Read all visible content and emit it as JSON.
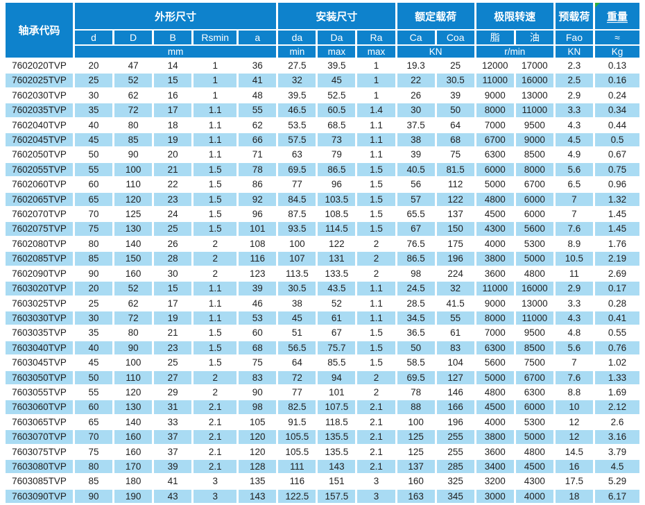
{
  "table": {
    "corner_header": "轴承代码",
    "groups": [
      {
        "label": "外形尺寸",
        "colspan": 5
      },
      {
        "label": "安装尺寸",
        "colspan": 3
      },
      {
        "label": "额定载荷",
        "colspan": 2
      },
      {
        "label": "极限转速",
        "colspan": 2
      },
      {
        "label": "预载荷",
        "colspan": 1
      },
      {
        "label": "重量",
        "colspan": 1,
        "has_comment_marker": true
      }
    ],
    "sub_headers": [
      "d",
      "D",
      "B",
      "Rsmin",
      "a",
      "da",
      "Da",
      "Ra",
      "Ca",
      "Coa",
      "脂",
      "油",
      "Fao",
      "≈"
    ],
    "unit_row": [
      {
        "label": "mm",
        "colspan": 5
      },
      {
        "label": "min",
        "colspan": 1
      },
      {
        "label": "max",
        "colspan": 1
      },
      {
        "label": "max",
        "colspan": 1
      },
      {
        "label": "KN",
        "colspan": 2
      },
      {
        "label": "r/min",
        "colspan": 2
      },
      {
        "label": "KN",
        "colspan": 1
      },
      {
        "label": "Kg",
        "colspan": 1
      }
    ],
    "rows": [
      [
        "7602020TVP",
        "20",
        "47",
        "14",
        "1",
        "36",
        "27.5",
        "39.5",
        "1",
        "19.3",
        "25",
        "12000",
        "17000",
        "2.3",
        "0.13"
      ],
      [
        "7602025TVP",
        "25",
        "52",
        "15",
        "1",
        "41",
        "32",
        "45",
        "1",
        "22",
        "30.5",
        "11000",
        "16000",
        "2.5",
        "0.16"
      ],
      [
        "7602030TVP",
        "30",
        "62",
        "16",
        "1",
        "48",
        "39.5",
        "52.5",
        "1",
        "26",
        "39",
        "9000",
        "13000",
        "2.9",
        "0.24"
      ],
      [
        "7602035TVP",
        "35",
        "72",
        "17",
        "1.1",
        "55",
        "46.5",
        "60.5",
        "1.4",
        "30",
        "50",
        "8000",
        "11000",
        "3.3",
        "0.34"
      ],
      [
        "7602040TVP",
        "40",
        "80",
        "18",
        "1.1",
        "62",
        "53.5",
        "68.5",
        "1.1",
        "37.5",
        "64",
        "7000",
        "9500",
        "4.3",
        "0.44"
      ],
      [
        "7602045TVP",
        "45",
        "85",
        "19",
        "1.1",
        "66",
        "57.5",
        "73",
        "1.1",
        "38",
        "68",
        "6700",
        "9000",
        "4.5",
        "0.5"
      ],
      [
        "7602050TVP",
        "50",
        "90",
        "20",
        "1.1",
        "71",
        "63",
        "79",
        "1.1",
        "39",
        "75",
        "6300",
        "8500",
        "4.9",
        "0.67"
      ],
      [
        "7602055TVP",
        "55",
        "100",
        "21",
        "1.5",
        "78",
        "69.5",
        "86.5",
        "1.5",
        "40.5",
        "81.5",
        "6000",
        "8000",
        "5.6",
        "0.75"
      ],
      [
        "7602060TVP",
        "60",
        "110",
        "22",
        "1.5",
        "86",
        "77",
        "96",
        "1.5",
        "56",
        "112",
        "5000",
        "6700",
        "6.5",
        "0.96"
      ],
      [
        "7602065TVP",
        "65",
        "120",
        "23",
        "1.5",
        "92",
        "84.5",
        "103.5",
        "1.5",
        "57",
        "122",
        "4800",
        "6000",
        "7",
        "1.32"
      ],
      [
        "7602070TVP",
        "70",
        "125",
        "24",
        "1.5",
        "96",
        "87.5",
        "108.5",
        "1.5",
        "65.5",
        "137",
        "4500",
        "6000",
        "7",
        "1.45"
      ],
      [
        "7602075TVP",
        "75",
        "130",
        "25",
        "1.5",
        "101",
        "93.5",
        "114.5",
        "1.5",
        "67",
        "150",
        "4300",
        "5600",
        "7.6",
        "1.45"
      ],
      [
        "7602080TVP",
        "80",
        "140",
        "26",
        "2",
        "108",
        "100",
        "122",
        "2",
        "76.5",
        "175",
        "4000",
        "5300",
        "8.9",
        "1.76"
      ],
      [
        "7602085TVP",
        "85",
        "150",
        "28",
        "2",
        "116",
        "107",
        "131",
        "2",
        "86.5",
        "196",
        "3800",
        "5000",
        "10.5",
        "2.19"
      ],
      [
        "7602090TVP",
        "90",
        "160",
        "30",
        "2",
        "123",
        "113.5",
        "133.5",
        "2",
        "98",
        "224",
        "3600",
        "4800",
        "11",
        "2.69"
      ],
      [
        "7603020TVP",
        "20",
        "52",
        "15",
        "1.1",
        "39",
        "30.5",
        "43.5",
        "1.1",
        "24.5",
        "32",
        "11000",
        "16000",
        "2.9",
        "0.17"
      ],
      [
        "7603025TVP",
        "25",
        "62",
        "17",
        "1.1",
        "46",
        "38",
        "52",
        "1.1",
        "28.5",
        "41.5",
        "9000",
        "13000",
        "3.3",
        "0.28"
      ],
      [
        "7603030TVP",
        "30",
        "72",
        "19",
        "1.1",
        "53",
        "45",
        "61",
        "1.1",
        "34.5",
        "55",
        "8000",
        "11000",
        "4.3",
        "0.41"
      ],
      [
        "7603035TVP",
        "35",
        "80",
        "21",
        "1.5",
        "60",
        "51",
        "67",
        "1.5",
        "36.5",
        "61",
        "7000",
        "9500",
        "4.8",
        "0.55"
      ],
      [
        "7603040TVP",
        "40",
        "90",
        "23",
        "1.5",
        "68",
        "56.5",
        "75.7",
        "1.5",
        "50",
        "83",
        "6300",
        "8500",
        "5.6",
        "0.76"
      ],
      [
        "7603045TVP",
        "45",
        "100",
        "25",
        "1.5",
        "75",
        "64",
        "85.5",
        "1.5",
        "58.5",
        "104",
        "5600",
        "7500",
        "7",
        "1.02"
      ],
      [
        "7603050TVP",
        "50",
        "110",
        "27",
        "2",
        "83",
        "72",
        "94",
        "2",
        "69.5",
        "127",
        "5000",
        "6700",
        "7.6",
        "1.33"
      ],
      [
        "7603055TVP",
        "55",
        "120",
        "29",
        "2",
        "90",
        "77",
        "101",
        "2",
        "78",
        "146",
        "4800",
        "6300",
        "8.8",
        "1.69"
      ],
      [
        "7603060TVP",
        "60",
        "130",
        "31",
        "2.1",
        "98",
        "82.5",
        "107.5",
        "2.1",
        "88",
        "166",
        "4500",
        "6000",
        "10",
        "2.12"
      ],
      [
        "7603065TVP",
        "65",
        "140",
        "33",
        "2.1",
        "105",
        "91.5",
        "118.5",
        "2.1",
        "100",
        "196",
        "4000",
        "5300",
        "12",
        "2.6"
      ],
      [
        "7603070TVP",
        "70",
        "160",
        "37",
        "2.1",
        "120",
        "105.5",
        "135.5",
        "2.1",
        "125",
        "255",
        "3800",
        "5000",
        "12",
        "3.16"
      ],
      [
        "7603075TVP",
        "75",
        "160",
        "37",
        "2.1",
        "120",
        "105.5",
        "135.5",
        "2.1",
        "125",
        "255",
        "3600",
        "4800",
        "14.5",
        "3.79"
      ],
      [
        "7603080TVP",
        "80",
        "170",
        "39",
        "2.1",
        "128",
        "111",
        "143",
        "2.1",
        "137",
        "285",
        "3400",
        "4500",
        "16",
        "4.5"
      ],
      [
        "7603085TVP",
        "85",
        "180",
        "41",
        "3",
        "135",
        "116",
        "151",
        "3",
        "160",
        "325",
        "3200",
        "4300",
        "17.5",
        "5.29"
      ],
      [
        "7603090TVP",
        "90",
        "190",
        "43",
        "3",
        "143",
        "122.5",
        "157.5",
        "3",
        "163",
        "345",
        "3000",
        "4000",
        "18",
        "6.17"
      ]
    ]
  },
  "icons": {
    "weight_marker": "comment-marker-icon"
  },
  "colors": {
    "header_bg": "#0e82cc",
    "stripe_bg": "#a9dbf3",
    "header_text": "#ffffff",
    "body_text": "#1e1e1e",
    "marker_green": "#2fae3c"
  }
}
